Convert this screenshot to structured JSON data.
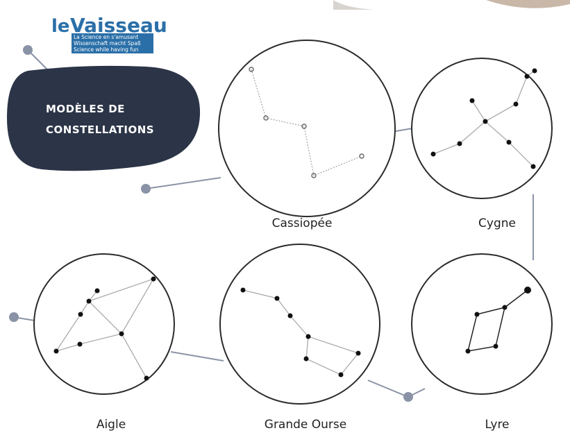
{
  "logo": {
    "name_prefix": "le",
    "name_main": "Vaisseau",
    "taglines": [
      "La Science en s'amusant",
      "Wissenschaft macht Spaß",
      "Science while having fun"
    ]
  },
  "header": {
    "title_lines": [
      "MODÈLES DE",
      "CONSTELLATIONS"
    ]
  },
  "constellations": [
    {
      "label": "Cassiopée"
    },
    {
      "label": "Cygne"
    },
    {
      "label": "Aigle"
    },
    {
      "label": "Grande Ourse"
    },
    {
      "label": "Lyre"
    }
  ]
}
